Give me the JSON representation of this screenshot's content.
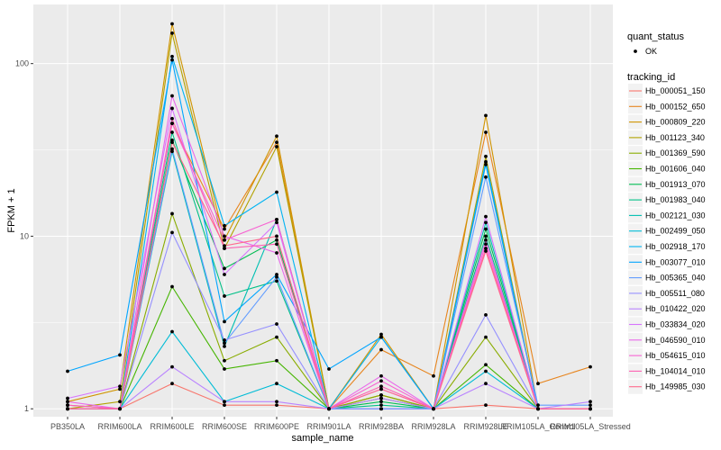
{
  "chart_data": {
    "type": "line",
    "xlabel": "sample_name",
    "ylabel": "FPKM + 1",
    "y_scale": "log10",
    "ylim": [
      0.9,
      220
    ],
    "y_ticks": [
      1,
      10,
      100
    ],
    "y_tick_labels": [
      "1",
      "10",
      "100"
    ],
    "categories": [
      "PB350LA",
      "RRIM600LA",
      "RRIM600LE",
      "RRIM600SE",
      "RRIM600PE",
      "RRIM901LA",
      "RRIM928BA",
      "RRIM928LA",
      "RRIM928LE",
      "RRIM105LA_Control",
      "RRIM105LA_Stressed"
    ],
    "category_labels": [
      "PB350LA",
      "RRIM600LA",
      "RRIM600LE",
      "RRIM600SE",
      "RRIM600PE",
      "RRIM901LA",
      "RRIM928BA",
      "RRIM928LA",
      "RRIM928LE",
      "RRIM105LA_Control",
      "RRIM105LA_Stressed"
    ],
    "grid": true,
    "panel_background": "#ebebeb",
    "point_legend": {
      "title": "quant_status",
      "items": [
        "OK"
      ]
    },
    "legend_title": "tracking_id",
    "legend_position": "right",
    "series": [
      {
        "name": "Hb_000051_150",
        "color": "#F8766D",
        "values": [
          1.0,
          1.0,
          1.4,
          1.05,
          1.05,
          1.0,
          1.2,
          1.0,
          1.05,
          1.0,
          1.0
        ]
      },
      {
        "name": "Hb_000152_650",
        "color": "#E7851E",
        "values": [
          1.05,
          1.0,
          45.0,
          11.0,
          35.0,
          1.0,
          2.2,
          1.55,
          40.0,
          1.4,
          1.75
        ]
      },
      {
        "name": "Hb_000809_220",
        "color": "#D09400",
        "values": [
          1.1,
          1.3,
          170.0,
          9.5,
          38.0,
          1.0,
          2.7,
          1.0,
          50.0,
          1.0,
          1.0
        ]
      },
      {
        "name": "Hb_001123_340",
        "color": "#B2A100",
        "values": [
          1.0,
          1.1,
          150.0,
          8.5,
          33.0,
          1.0,
          1.2,
          1.0,
          29.0,
          1.0,
          1.0
        ]
      },
      {
        "name": "Hb_001369_590",
        "color": "#89AC00",
        "values": [
          1.0,
          1.0,
          13.5,
          1.9,
          2.6,
          1.0,
          1.2,
          1.0,
          2.6,
          1.0,
          1.0
        ]
      },
      {
        "name": "Hb_001606_040",
        "color": "#45B500",
        "values": [
          1.0,
          1.0,
          5.1,
          1.7,
          1.9,
          1.0,
          1.15,
          1.0,
          1.8,
          1.0,
          1.0
        ]
      },
      {
        "name": "Hb_001913_070",
        "color": "#00BC51",
        "values": [
          1.0,
          1.0,
          36.0,
          6.5,
          9.5,
          1.0,
          1.1,
          1.0,
          11.0,
          1.0,
          1.0
        ]
      },
      {
        "name": "Hb_001983_040",
        "color": "#00C087",
        "values": [
          1.0,
          1.0,
          40.0,
          4.5,
          5.5,
          1.0,
          1.05,
          1.0,
          10.0,
          1.0,
          1.0
        ]
      },
      {
        "name": "Hb_002121_030",
        "color": "#00C0B2",
        "values": [
          1.0,
          1.0,
          31.0,
          2.3,
          12.5,
          1.0,
          1.0,
          1.0,
          12.0,
          1.0,
          1.0
        ]
      },
      {
        "name": "Hb_002499_050",
        "color": "#00BCD6",
        "values": [
          1.0,
          1.0,
          2.8,
          1.1,
          1.4,
          1.0,
          1.0,
          1.0,
          1.65,
          1.0,
          1.0
        ]
      },
      {
        "name": "Hb_002918_170",
        "color": "#00B3F2",
        "values": [
          1.0,
          1.0,
          110.0,
          11.5,
          18.0,
          1.0,
          2.6,
          1.0,
          27.0,
          1.0,
          1.0
        ]
      },
      {
        "name": "Hb_003077_010",
        "color": "#00A5FF",
        "values": [
          1.65,
          2.05,
          105.0,
          3.2,
          6.0,
          1.7,
          2.6,
          1.0,
          26.0,
          1.0,
          1.0
        ]
      },
      {
        "name": "Hb_005365_040",
        "color": "#619CFF",
        "values": [
          1.0,
          1.0,
          32.0,
          2.4,
          5.8,
          1.0,
          1.0,
          1.0,
          22.0,
          1.05,
          1.05
        ]
      },
      {
        "name": "Hb_005511_080",
        "color": "#9590FF",
        "values": [
          1.0,
          1.0,
          10.5,
          2.5,
          3.1,
          1.0,
          1.0,
          1.0,
          3.5,
          1.0,
          1.0
        ]
      },
      {
        "name": "Hb_010422_020",
        "color": "#B983FF",
        "values": [
          1.05,
          1.0,
          1.75,
          1.1,
          1.1,
          1.0,
          1.15,
          1.0,
          1.4,
          1.0,
          1.1
        ]
      },
      {
        "name": "Hb_033834_020",
        "color": "#D774FD",
        "values": [
          1.15,
          1.35,
          55.0,
          6.0,
          12.0,
          1.0,
          1.3,
          1.0,
          13.0,
          1.0,
          1.0
        ]
      },
      {
        "name": "Hb_046590_010",
        "color": "#EA69EB",
        "values": [
          1.1,
          1.0,
          65.0,
          10.0,
          8.0,
          1.0,
          1.55,
          1.0,
          9.5,
          1.0,
          1.0
        ]
      },
      {
        "name": "Hb_054615_010",
        "color": "#F763D2",
        "values": [
          1.0,
          1.0,
          45.0,
          9.5,
          12.5,
          1.0,
          1.45,
          1.0,
          9.0,
          1.0,
          1.0
        ]
      },
      {
        "name": "Hb_104014_010",
        "color": "#FD61B2",
        "values": [
          1.05,
          1.0,
          48.0,
          8.5,
          9.0,
          1.0,
          1.35,
          1.0,
          8.5,
          1.0,
          1.0
        ]
      },
      {
        "name": "Hb_149985_030",
        "color": "#FF6A8D",
        "values": [
          1.0,
          1.0,
          35.0,
          8.8,
          10.0,
          1.0,
          1.3,
          1.0,
          8.2,
          1.0,
          1.0
        ]
      }
    ]
  }
}
